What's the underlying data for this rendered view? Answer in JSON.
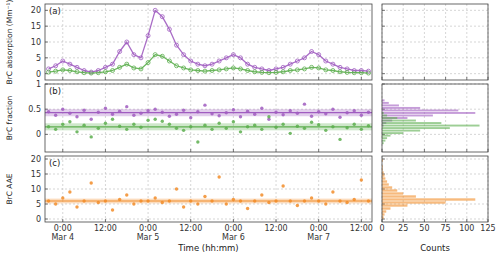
{
  "chart_data": [
    {
      "type": "scatter",
      "title": "(a)",
      "y_label": "BrC absorption (Mm⁻¹)",
      "x": [
        -4,
        -2,
        0,
        2,
        4,
        6,
        8,
        10,
        12,
        14,
        16,
        18,
        20,
        22,
        24,
        26,
        28,
        30,
        32,
        34,
        36,
        38,
        40,
        42,
        44,
        46,
        48,
        50,
        52,
        54,
        56,
        58,
        60,
        62,
        64,
        66,
        68,
        70,
        72,
        74,
        76,
        78,
        80,
        82,
        84,
        86
      ],
      "xlim": [
        -5,
        87
      ],
      "xticks": [
        {
          "value": 0,
          "label": "0:00"
        },
        {
          "value": 12,
          "label": "12:00"
        },
        {
          "value": 24,
          "label": "0:00"
        },
        {
          "value": 36,
          "label": "12:00"
        },
        {
          "value": 48,
          "label": "0:00"
        },
        {
          "value": 60,
          "label": "12:00"
        },
        {
          "value": 72,
          "label": "0:00"
        },
        {
          "value": 84,
          "label": "12:00"
        }
      ],
      "ylim": [
        -2,
        22
      ],
      "yticks": [
        0,
        5,
        10,
        15,
        20
      ],
      "grid": true,
      "tick_labels": "y",
      "series": [
        {
          "color": "#a05cc0",
          "marker": "open_circle",
          "line_style": "solid",
          "values": [
            1.5,
            2.5,
            4,
            3,
            2,
            1,
            0.5,
            1,
            2,
            3,
            7,
            10,
            6,
            5,
            12,
            20,
            18,
            14,
            9,
            6,
            4,
            3,
            2.5,
            3,
            4,
            5,
            6,
            5,
            3,
            2,
            1.5,
            1,
            1.5,
            2,
            3,
            4,
            5,
            7,
            6,
            4,
            3,
            2,
            1.5,
            1,
            1,
            0.8
          ]
        },
        {
          "color": "#5cae4e",
          "marker": "open_circle",
          "line_style": "solid",
          "values": [
            0.5,
            0.8,
            1.2,
            1,
            0.6,
            0.3,
            0.2,
            0.3,
            0.6,
            1,
            2,
            3,
            1.8,
            1.5,
            3.5,
            6,
            5.5,
            4,
            2.5,
            1.8,
            1.2,
            1,
            0.8,
            1,
            1.2,
            1.5,
            1.8,
            1.5,
            1,
            0.6,
            0.4,
            0.3,
            0.4,
            0.6,
            1,
            1.2,
            1.5,
            2,
            1.8,
            1.2,
            1,
            0.6,
            0.4,
            0.3,
            0.3,
            0.2
          ]
        }
      ]
    },
    {
      "type": "scatter",
      "title": "(b)",
      "y_label": "BrC fraction",
      "x": [
        -4,
        -2,
        0,
        2,
        4,
        6,
        8,
        10,
        12,
        14,
        16,
        18,
        20,
        22,
        24,
        26,
        28,
        30,
        32,
        34,
        36,
        38,
        40,
        42,
        44,
        46,
        48,
        50,
        52,
        54,
        56,
        58,
        60,
        62,
        64,
        66,
        68,
        70,
        72,
        74,
        76,
        78,
        80,
        82,
        84,
        86
      ],
      "xlim": [
        -5,
        87
      ],
      "xticks": [
        {
          "value": 0,
          "label": "0:00"
        },
        {
          "value": 12,
          "label": "12:00"
        },
        {
          "value": 24,
          "label": "0:00"
        },
        {
          "value": 36,
          "label": "12:00"
        },
        {
          "value": 48,
          "label": "0:00"
        },
        {
          "value": 60,
          "label": "12:00"
        },
        {
          "value": 72,
          "label": "0:00"
        },
        {
          "value": 84,
          "label": "12:00"
        }
      ],
      "ylim": [
        -0.35,
        1.0
      ],
      "yticks": [
        0,
        0.5,
        1
      ],
      "grid": true,
      "tick_labels": "y",
      "series": [
        {
          "color": "#a05cc0",
          "marker": "circle",
          "mean": 0.43,
          "std": 0.07,
          "values": [
            0.45,
            0.38,
            0.5,
            0.42,
            0.35,
            0.48,
            0.3,
            0.44,
            0.52,
            0.4,
            0.46,
            0.55,
            0.38,
            0.42,
            0.47,
            0.5,
            0.44,
            0.36,
            0.4,
            0.48,
            0.33,
            0.45,
            0.58,
            0.41,
            0.37,
            0.43,
            0.49,
            0.35,
            0.46,
            0.4,
            0.52,
            0.3,
            0.44,
            0.39,
            0.47,
            0.42,
            0.6,
            0.36,
            0.45,
            0.41,
            0.5,
            0.34,
            0.43,
            0.47,
            0.38,
            0.44
          ]
        },
        {
          "color": "#5cae4e",
          "marker": "circle",
          "mean": 0.15,
          "std": 0.07,
          "values": [
            0.15,
            0.1,
            0.2,
            0.25,
            0.05,
            0.18,
            -0.05,
            0.12,
            0.22,
            0.3,
            0.16,
            0.1,
            0.2,
            0.14,
            0.28,
            0.3,
            0.26,
            0.2,
            0.12,
            0.08,
            0.15,
            -0.15,
            0.18,
            0.1,
            0.22,
            0.12,
            0.25,
            0.05,
            0.15,
            0.18,
            0.1,
            0.35,
            0.14,
            0.2,
            0.02,
            0.16,
            0.12,
            0.24,
            0.19,
            0.08,
            0.15,
            -0.1,
            0.13,
            0.2,
            0.1,
            0.17
          ]
        }
      ]
    },
    {
      "type": "scatter",
      "title": "(c)",
      "y_label": "BrC AAE",
      "x_label": "Time (hh:mm)",
      "x": [
        -4,
        -2,
        0,
        2,
        4,
        6,
        8,
        10,
        12,
        14,
        16,
        18,
        20,
        22,
        24,
        26,
        28,
        30,
        32,
        34,
        36,
        38,
        40,
        42,
        44,
        46,
        48,
        50,
        52,
        54,
        56,
        58,
        60,
        62,
        64,
        66,
        68,
        70,
        72,
        74,
        76,
        78,
        80,
        82,
        84,
        86
      ],
      "xlim": [
        -5,
        87
      ],
      "xticks": [
        {
          "value": 0,
          "label": "0:00"
        },
        {
          "value": 12,
          "label": "12:00"
        },
        {
          "value": 24,
          "label": "0:00"
        },
        {
          "value": 36,
          "label": "12:00"
        },
        {
          "value": 48,
          "label": "0:00"
        },
        {
          "value": 60,
          "label": "12:00"
        },
        {
          "value": 72,
          "label": "0:00"
        },
        {
          "value": 84,
          "label": "12:00"
        }
      ],
      "x_date_ticks": [
        {
          "value": 0,
          "label": "Mar 4"
        },
        {
          "value": 24,
          "label": "Mar 5"
        },
        {
          "value": 48,
          "label": "Mar 6"
        },
        {
          "value": 72,
          "label": "Mar 7"
        }
      ],
      "ylim": [
        -1,
        21
      ],
      "yticks": [
        0,
        5,
        10,
        15,
        20
      ],
      "grid": true,
      "series": [
        {
          "color": "#f28c28",
          "marker": "circle",
          "mean": 6,
          "std": 0.8,
          "values": [
            6,
            5,
            7,
            9,
            4,
            6,
            12,
            5.5,
            6,
            3,
            6.5,
            8,
            5,
            6,
            6,
            7,
            5.5,
            6,
            10,
            4,
            6,
            5,
            7.5,
            6,
            14,
            5,
            6.5,
            6,
            3.5,
            6,
            8,
            5.5,
            6,
            11,
            6,
            4.5,
            6,
            7,
            6,
            5,
            9,
            6,
            5.5,
            6.5,
            13,
            6
          ]
        }
      ]
    },
    {
      "type": "histogram",
      "orientation": "horizontal",
      "xlim": [
        0,
        125
      ],
      "xticks": [
        0,
        25,
        50,
        75,
        100,
        125
      ],
      "ylim": [
        -2,
        22
      ],
      "yticks": [
        0,
        5,
        10,
        15,
        20
      ],
      "grid": true,
      "tick_labels": false,
      "series": []
    },
    {
      "type": "histogram",
      "orientation": "horizontal",
      "xlim": [
        0,
        125
      ],
      "xticks": [
        0,
        25,
        50,
        75,
        100,
        125
      ],
      "ylim": [
        -0.35,
        1.0
      ],
      "yticks": [
        0,
        0.5,
        1
      ],
      "grid": true,
      "tick_labels": false,
      "bins": [
        -0.2,
        -0.15,
        -0.1,
        -0.05,
        0,
        0.05,
        0.1,
        0.15,
        0.2,
        0.25,
        0.3,
        0.35,
        0.4,
        0.45,
        0.5,
        0.55,
        0.6,
        0.65,
        0.7
      ],
      "series": [
        {
          "color": "#a05cc0",
          "values": [
            0,
            0,
            0,
            0,
            0,
            0,
            0,
            2,
            5,
            12,
            30,
            60,
            110,
            90,
            45,
            20,
            8,
            3
          ]
        },
        {
          "color": "#5cae4e",
          "values": [
            2,
            4,
            6,
            10,
            25,
            45,
            80,
            115,
            70,
            40,
            18,
            6,
            2,
            0,
            0,
            0,
            0,
            0
          ]
        }
      ]
    },
    {
      "type": "histogram",
      "orientation": "horizontal",
      "x_label": "Counts",
      "xlim": [
        0,
        125
      ],
      "xticks": [
        0,
        25,
        50,
        75,
        100,
        125
      ],
      "ylim": [
        -1,
        21
      ],
      "yticks": [
        0,
        5,
        10,
        15,
        20
      ],
      "grid": true,
      "tick_labels": "x",
      "bins": [
        0,
        1,
        2,
        3,
        4,
        5,
        6,
        7,
        8,
        9,
        10,
        11,
        12,
        13,
        14,
        15,
        16,
        17,
        18,
        19,
        20
      ],
      "series": [
        {
          "color": "#f28c28",
          "values": [
            2,
            3,
            5,
            10,
            30,
            75,
            110,
            40,
            25,
            18,
            12,
            8,
            6,
            4,
            3,
            2,
            1,
            1,
            0,
            1
          ]
        }
      ]
    }
  ]
}
